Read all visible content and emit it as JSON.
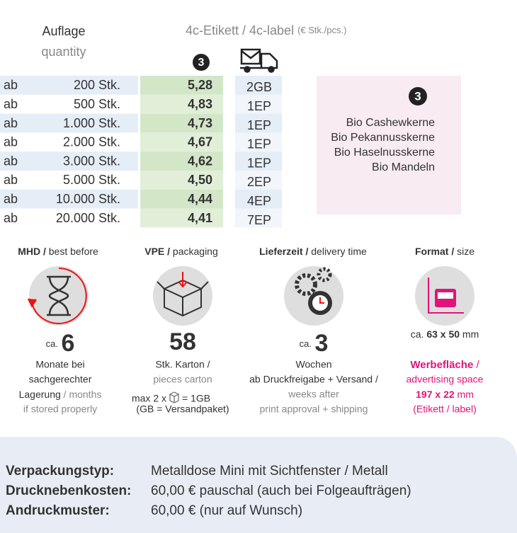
{
  "header": {
    "quantity_de": "Auflage",
    "quantity_en": "quantity",
    "label_title": "4c-Etikett / 4c-label",
    "label_unit": "(€ Stk./pcs.)",
    "badge": "3"
  },
  "table": {
    "rows": [
      [
        "ab",
        "200 Stk.",
        "5,28",
        "2GB"
      ],
      [
        "ab",
        "500 Stk.",
        "4,83",
        "1EP"
      ],
      [
        "ab",
        "1.000 Stk.",
        "4,73",
        "1EP"
      ],
      [
        "ab",
        "2.000 Stk.",
        "4,67",
        "1EP"
      ],
      [
        "ab",
        "3.000 Stk.",
        "4,62",
        "1EP"
      ],
      [
        "ab",
        "5.000 Stk.",
        "4,50",
        "2EP"
      ],
      [
        "ab",
        "10.000 Stk.",
        "4,44",
        "4EP"
      ],
      [
        "ab",
        "20.000 Stk.",
        "4,41",
        "7EP"
      ]
    ]
  },
  "product_box": {
    "badge": "3",
    "items": [
      "Bio Cashewkerne",
      "Bio Pekannusskerne",
      "Bio Haselnusskerne",
      "Bio Mandeln"
    ]
  },
  "info": [
    {
      "title_de": "MHD /",
      "title_en": "best before",
      "prefix": "ca.",
      "value": "6",
      "lines": [
        "Monate bei",
        "sachgerechter",
        "Lagerung"
      ],
      "lines_en": [
        "/ months",
        "if stored properly"
      ]
    },
    {
      "title_de": "VPE /",
      "title_en": "packaging",
      "value": "58",
      "lines": [
        "Stk. Karton /"
      ],
      "lines_en": [
        "pieces carton"
      ],
      "note_left": "max 2 x",
      "note_right": "= 1GB",
      "note_2": "(GB = Versandpaket)"
    },
    {
      "title_de": "Lieferzeit /",
      "title_en": "delivery time",
      "prefix": "ca.",
      "value": "3",
      "lines": [
        "Wochen",
        "ab Druckfreigabe + Versand /"
      ],
      "lines_en": [
        "weeks after",
        "print approval + shipping"
      ]
    },
    {
      "title_de": "Format /",
      "title_en": "size",
      "prefix": "ca.",
      "value": "63 x 50",
      "unit": "mm",
      "lines": [
        "Werbefläche",
        "/",
        "advertising space",
        "(Etikett / label)"
      ],
      "space_value": "197 x 22"
    }
  ],
  "details": [
    {
      "label": "Verpackungstyp:",
      "value": "Metalldose Mini mit Sichtfenster / Metall"
    },
    {
      "label": "Drucknebenkosten:",
      "value": "60,00 € pauschal (auch bei Folgeaufträgen)"
    },
    {
      "label": "Andruckmuster:",
      "value": "60,00 € (nur auf Wunsch)"
    }
  ]
}
